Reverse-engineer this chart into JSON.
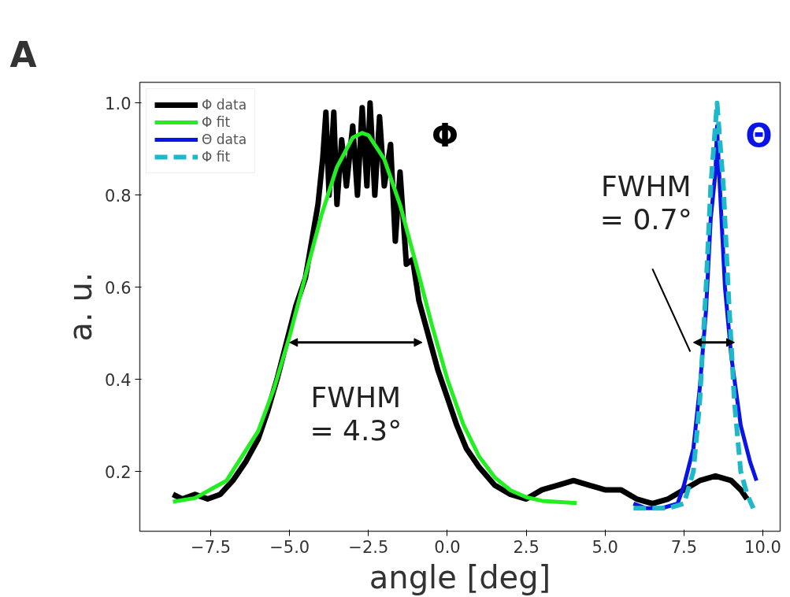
{
  "chart_data": {
    "type": "line",
    "xlabel": "angle [deg]",
    "ylabel": "a. u.",
    "xlim": [
      -9.75,
      10.55
    ],
    "ylim": [
      0.07,
      1.045
    ],
    "xticks": [
      {
        "value": -7.5,
        "label": "−7.5"
      },
      {
        "value": -5.0,
        "label": "−5.0"
      },
      {
        "value": -2.5,
        "label": "−2.5"
      },
      {
        "value": 0,
        "label": "0.0"
      },
      {
        "value": 2.5,
        "label": "2.5"
      },
      {
        "value": 5.0,
        "label": "5.0"
      },
      {
        "value": 7.5,
        "label": "7.5"
      },
      {
        "value": 10.0,
        "label": "10.0"
      }
    ],
    "yticks": [
      {
        "value": 0.2,
        "label": "0.2"
      },
      {
        "value": 0.4,
        "label": "0.4"
      },
      {
        "value": 0.6,
        "label": "0.6"
      },
      {
        "value": 0.8,
        "label": "0.8"
      },
      {
        "value": 1.0,
        "label": "1.0"
      }
    ],
    "grid": false,
    "legend": "top left",
    "line_style": "solid",
    "series": [
      {
        "name": "Φ data",
        "color": "#000000",
        "x": [
          -8.7,
          -8.4,
          -8.0,
          -7.6,
          -7.2,
          -6.8,
          -6.4,
          -6.0,
          -5.7,
          -5.4,
          -5.1,
          -4.8,
          -4.5,
          -4.3,
          -4.1,
          -3.95,
          -3.85,
          -3.75,
          -3.6,
          -3.5,
          -3.35,
          -3.2,
          -3.0,
          -2.85,
          -2.7,
          -2.55,
          -2.45,
          -2.3,
          -2.15,
          -2.0,
          -1.8,
          -1.65,
          -1.5,
          -1.3,
          -1.1,
          -0.9,
          -0.7,
          -0.5,
          -0.3,
          0.0,
          0.3,
          0.6,
          1.0,
          1.5,
          2.0,
          2.5,
          3.0,
          3.5,
          4.0,
          4.5,
          5.0,
          5.5,
          6.0,
          6.5,
          7.0,
          7.5,
          8.0,
          8.5,
          9.0,
          9.3,
          9.5
        ],
        "values": [
          0.15,
          0.14,
          0.15,
          0.14,
          0.15,
          0.18,
          0.22,
          0.27,
          0.33,
          0.4,
          0.48,
          0.56,
          0.62,
          0.7,
          0.78,
          0.88,
          0.98,
          0.8,
          0.98,
          0.78,
          0.92,
          0.82,
          0.95,
          0.8,
          0.99,
          0.82,
          1.0,
          0.8,
          0.97,
          0.82,
          0.91,
          0.7,
          0.85,
          0.65,
          0.66,
          0.57,
          0.52,
          0.47,
          0.42,
          0.36,
          0.3,
          0.25,
          0.21,
          0.17,
          0.15,
          0.14,
          0.16,
          0.17,
          0.18,
          0.17,
          0.16,
          0.16,
          0.14,
          0.13,
          0.14,
          0.16,
          0.18,
          0.19,
          0.18,
          0.16,
          0.14
        ]
      },
      {
        "name": "Φ fit",
        "color": "#22ee22",
        "x": [
          -8.7,
          -8.0,
          -7.0,
          -6.0,
          -5.5,
          -5.0,
          -4.5,
          -4.0,
          -3.5,
          -3.0,
          -2.7,
          -2.5,
          -2.0,
          -1.5,
          -1.0,
          -0.5,
          0.0,
          0.5,
          1.0,
          1.5,
          2.0,
          2.5,
          3.0,
          4.1
        ],
        "values": [
          0.134,
          0.142,
          0.18,
          0.287,
          0.379,
          0.494,
          0.625,
          0.755,
          0.861,
          0.925,
          0.935,
          0.93,
          0.878,
          0.779,
          0.652,
          0.52,
          0.4,
          0.303,
          0.233,
          0.187,
          0.159,
          0.144,
          0.136,
          0.131
        ]
      },
      {
        "name": "Θ data",
        "color": "#0a14e6",
        "x": [
          5.9,
          6.3,
          6.8,
          7.3,
          7.5,
          7.8,
          8.0,
          8.2,
          8.35,
          8.5,
          8.55,
          8.6,
          8.8,
          9.0,
          9.3,
          9.6,
          9.8
        ],
        "values": [
          0.13,
          0.12,
          0.12,
          0.13,
          0.17,
          0.25,
          0.38,
          0.55,
          0.75,
          0.85,
          0.95,
          0.87,
          0.6,
          0.45,
          0.3,
          0.22,
          0.18
        ]
      },
      {
        "name": "Φ fit",
        "color": "#1fb8c8",
        "line_style": "dashed",
        "x": [
          5.9,
          7.0,
          7.5,
          7.8,
          8.0,
          8.2,
          8.35,
          8.55,
          8.75,
          8.9,
          9.1,
          9.3,
          9.5,
          9.7
        ],
        "values": [
          0.12,
          0.12,
          0.13,
          0.2,
          0.35,
          0.6,
          0.82,
          1.0,
          0.82,
          0.6,
          0.35,
          0.2,
          0.15,
          0.12
        ]
      }
    ],
    "annotations": [
      "A",
      "Φ",
      "Θ",
      "FWHM\n= 4.3°",
      "FWHM\n= 0.7°"
    ]
  }
}
